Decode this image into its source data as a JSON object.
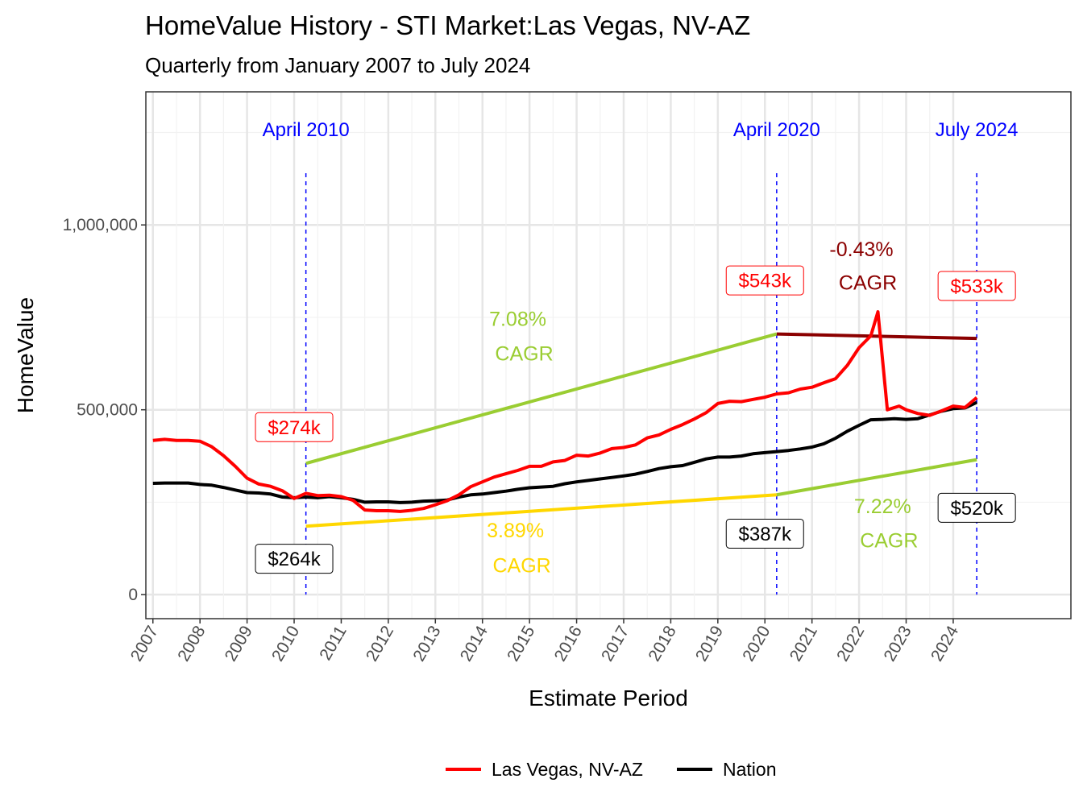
{
  "chart_data": {
    "type": "line",
    "title": "HomeValue History - STI Market:Las Vegas, NV-AZ",
    "subtitle": "Quarterly from January 2007 to July 2024",
    "xlabel": "Estimate Period",
    "ylabel": "HomeValue",
    "xlim": [
      2006.85,
      2026.5
    ],
    "ylim": [
      -65000,
      1360000
    ],
    "x_ticks": [
      "2007",
      "2008",
      "2009",
      "2010",
      "2011",
      "2012",
      "2013",
      "2014",
      "2015",
      "2016",
      "2017",
      "2018",
      "2019",
      "2020",
      "2021",
      "2022",
      "2023",
      "2024"
    ],
    "y_ticks": [
      {
        "value": 0,
        "label": "0"
      },
      {
        "value": 500000,
        "label": "500,000"
      },
      {
        "value": 1000000,
        "label": "1,000,000"
      }
    ],
    "grid": true,
    "legend_position": "bottom",
    "series": [
      {
        "name": "Las Vegas, NV-AZ",
        "color": "#ff0000",
        "points": [
          [
            2007.0,
            417000
          ],
          [
            2007.25,
            420000
          ],
          [
            2007.5,
            417000
          ],
          [
            2007.75,
            417000
          ],
          [
            2008.0,
            415000
          ],
          [
            2008.25,
            400000
          ],
          [
            2008.5,
            376000
          ],
          [
            2008.75,
            347000
          ],
          [
            2009.0,
            315000
          ],
          [
            2009.25,
            299000
          ],
          [
            2009.5,
            293000
          ],
          [
            2009.75,
            281000
          ],
          [
            2010.0,
            260000
          ],
          [
            2010.25,
            274000
          ],
          [
            2010.5,
            268000
          ],
          [
            2010.75,
            269000
          ],
          [
            2011.0,
            265000
          ],
          [
            2011.25,
            255000
          ],
          [
            2011.5,
            229000
          ],
          [
            2011.75,
            227000
          ],
          [
            2012.0,
            227000
          ],
          [
            2012.25,
            225000
          ],
          [
            2012.5,
            228000
          ],
          [
            2012.75,
            233000
          ],
          [
            2013.0,
            243000
          ],
          [
            2013.25,
            254000
          ],
          [
            2013.5,
            270000
          ],
          [
            2013.75,
            292000
          ],
          [
            2014.0,
            305000
          ],
          [
            2014.25,
            318000
          ],
          [
            2014.5,
            327000
          ],
          [
            2014.75,
            336000
          ],
          [
            2015.0,
            347000
          ],
          [
            2015.25,
            347000
          ],
          [
            2015.5,
            359000
          ],
          [
            2015.75,
            363000
          ],
          [
            2016.0,
            377000
          ],
          [
            2016.25,
            375000
          ],
          [
            2016.5,
            383000
          ],
          [
            2016.75,
            395000
          ],
          [
            2017.0,
            398000
          ],
          [
            2017.25,
            405000
          ],
          [
            2017.5,
            424000
          ],
          [
            2017.75,
            432000
          ],
          [
            2018.0,
            447000
          ],
          [
            2018.25,
            460000
          ],
          [
            2018.5,
            475000
          ],
          [
            2018.75,
            492000
          ],
          [
            2019.0,
            517000
          ],
          [
            2019.25,
            523000
          ],
          [
            2019.5,
            522000
          ],
          [
            2019.75,
            528000
          ],
          [
            2020.0,
            534000
          ],
          [
            2020.25,
            543000
          ],
          [
            2020.5,
            546000
          ],
          [
            2020.75,
            556000
          ],
          [
            2021.0,
            561000
          ],
          [
            2021.25,
            573000
          ],
          [
            2021.5,
            584000
          ],
          [
            2021.75,
            620000
          ],
          [
            2022.0,
            668000
          ],
          [
            2022.25,
            700000
          ],
          [
            2022.4,
            765000
          ],
          [
            2022.6,
            500000
          ],
          [
            2022.85,
            510000
          ],
          [
            2023.0,
            500000
          ],
          [
            2023.25,
            490000
          ],
          [
            2023.5,
            485000
          ],
          [
            2023.75,
            497000
          ],
          [
            2024.0,
            510000
          ],
          [
            2024.25,
            506000
          ],
          [
            2024.5,
            533000
          ]
        ]
      },
      {
        "name": "Nation",
        "color": "#000000",
        "points": [
          [
            2007.0,
            301000
          ],
          [
            2007.25,
            302000
          ],
          [
            2007.5,
            302000
          ],
          [
            2007.75,
            302000
          ],
          [
            2008.0,
            298000
          ],
          [
            2008.25,
            296000
          ],
          [
            2008.5,
            290000
          ],
          [
            2008.75,
            283000
          ],
          [
            2009.0,
            276000
          ],
          [
            2009.25,
            275000
          ],
          [
            2009.5,
            272000
          ],
          [
            2009.75,
            264000
          ],
          [
            2010.0,
            262000
          ],
          [
            2010.25,
            264000
          ],
          [
            2010.5,
            262000
          ],
          [
            2010.75,
            265000
          ],
          [
            2011.0,
            262000
          ],
          [
            2011.25,
            258000
          ],
          [
            2011.5,
            250000
          ],
          [
            2011.75,
            251000
          ],
          [
            2012.0,
            251000
          ],
          [
            2012.25,
            249000
          ],
          [
            2012.5,
            250000
          ],
          [
            2012.75,
            253000
          ],
          [
            2013.0,
            254000
          ],
          [
            2013.25,
            256000
          ],
          [
            2013.5,
            264000
          ],
          [
            2013.75,
            270000
          ],
          [
            2014.0,
            272000
          ],
          [
            2014.25,
            276000
          ],
          [
            2014.5,
            280000
          ],
          [
            2014.75,
            285000
          ],
          [
            2015.0,
            289000
          ],
          [
            2015.25,
            291000
          ],
          [
            2015.5,
            293000
          ],
          [
            2015.75,
            300000
          ],
          [
            2016.0,
            305000
          ],
          [
            2016.25,
            309000
          ],
          [
            2016.5,
            313000
          ],
          [
            2016.75,
            317000
          ],
          [
            2017.0,
            321000
          ],
          [
            2017.25,
            326000
          ],
          [
            2017.5,
            333000
          ],
          [
            2017.75,
            341000
          ],
          [
            2018.0,
            346000
          ],
          [
            2018.25,
            349000
          ],
          [
            2018.5,
            358000
          ],
          [
            2018.75,
            367000
          ],
          [
            2019.0,
            372000
          ],
          [
            2019.25,
            372000
          ],
          [
            2019.5,
            375000
          ],
          [
            2019.75,
            381000
          ],
          [
            2020.0,
            384000
          ],
          [
            2020.25,
            387000
          ],
          [
            2020.5,
            390000
          ],
          [
            2020.75,
            394000
          ],
          [
            2021.0,
            399000
          ],
          [
            2021.25,
            408000
          ],
          [
            2021.5,
            423000
          ],
          [
            2021.75,
            442000
          ],
          [
            2022.0,
            458000
          ],
          [
            2022.25,
            473000
          ],
          [
            2022.5,
            474000
          ],
          [
            2022.75,
            476000
          ],
          [
            2023.0,
            474000
          ],
          [
            2023.25,
            476000
          ],
          [
            2023.5,
            486000
          ],
          [
            2023.75,
            496000
          ],
          [
            2024.0,
            503000
          ],
          [
            2024.25,
            505000
          ],
          [
            2024.5,
            520000
          ]
        ]
      }
    ],
    "reference_lines": [
      {
        "label": "April 2010",
        "x": 2010.25
      },
      {
        "label": "April 2020",
        "x": 2020.25
      },
      {
        "label": "July 2024",
        "x": 2024.5
      }
    ],
    "trend_lines": [
      {
        "color": "#9acd32",
        "from": [
          2010.25,
          355000
        ],
        "to": [
          2020.25,
          705000
        ]
      },
      {
        "color": "#8b0000",
        "from": [
          2020.25,
          705000
        ],
        "to": [
          2024.5,
          693000
        ]
      },
      {
        "color": "#ffd700",
        "from": [
          2010.25,
          185000
        ],
        "to": [
          2020.25,
          270000
        ]
      },
      {
        "color": "#9acd32",
        "from": [
          2020.25,
          270000
        ],
        "to": [
          2024.5,
          365000
        ]
      }
    ],
    "cagr_labels": [
      {
        "value": "7.08%",
        "text": "CAGR",
        "color": "#9acd32",
        "x": 2014.75,
        "y": 727000,
        "y2": 633000
      },
      {
        "value": "-0.43%",
        "text": "CAGR",
        "color": "#8b0000",
        "x": 2022.05,
        "y": 915000,
        "y2": 825000
      },
      {
        "value": "3.89%",
        "text": "CAGR",
        "color": "#ffd700",
        "x": 2014.7,
        "y": 155000,
        "y2": 60000
      },
      {
        "value": "7.22%",
        "text": "CAGR",
        "color": "#9acd32",
        "x": 2022.5,
        "y": 220000,
        "y2": 128000
      }
    ],
    "value_labels": [
      {
        "text": "$274k",
        "color": "#ff0000",
        "x": 2010.0,
        "y": 453000
      },
      {
        "text": "$543k",
        "color": "#ff0000",
        "x": 2020.0,
        "y": 850000
      },
      {
        "text": "$533k",
        "color": "#ff0000",
        "x": 2024.5,
        "y": 835000
      },
      {
        "text": "$264k",
        "color": "#000000",
        "x": 2010.0,
        "y": 97000
      },
      {
        "text": "$387k",
        "color": "#000000",
        "x": 2020.0,
        "y": 165000
      },
      {
        "text": "$520k",
        "color": "#000000",
        "x": 2024.5,
        "y": 235000
      }
    ]
  }
}
